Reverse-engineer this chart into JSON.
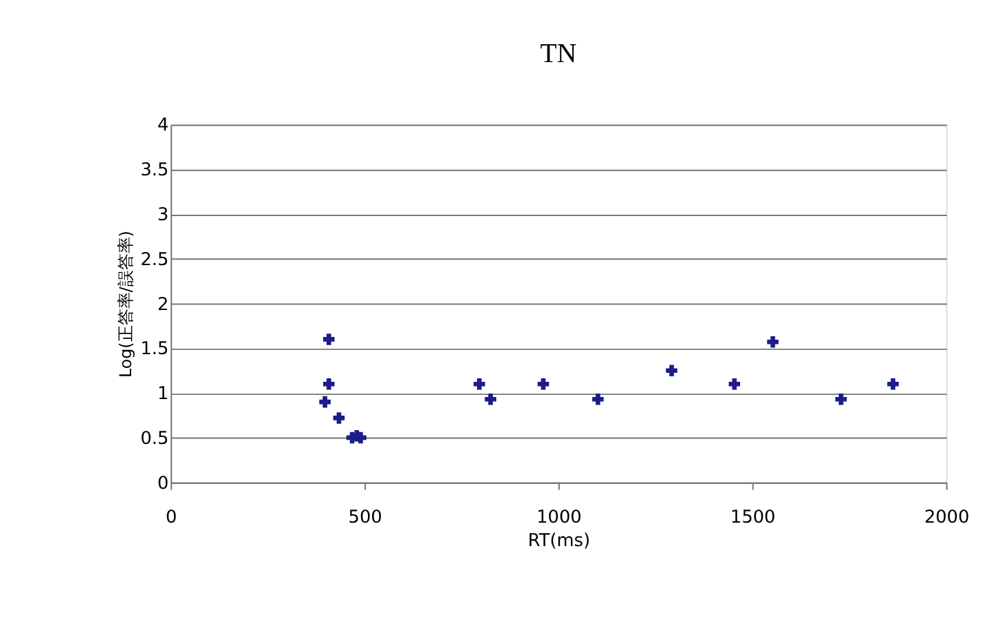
{
  "chart_data": {
    "type": "scatter",
    "title": "TN",
    "xlabel": "RT(ms)",
    "ylabel": "Log(正答率/誤答率)",
    "series": [
      {
        "color": "#1c1c8a",
        "marker": "cross",
        "x": [
          408,
          408,
          398,
          434,
          468,
          490,
          480
        ],
        "values": [
          1.6,
          1.1,
          0.9,
          0.72,
          0.5,
          0.5,
          0.52
        ]
      },
      {
        "color": "#1c1c8a",
        "marker": "cross",
        "x": [
          796,
          825,
          961,
          1102,
          1292,
          1454,
          1553,
          1729,
          1863
        ],
        "values": [
          1.1,
          0.93,
          1.1,
          0.93,
          1.25,
          1.1,
          1.57,
          0.93,
          1.1
        ]
      }
    ],
    "xlim": [
      0,
      2000
    ],
    "xticks": [
      0,
      500,
      1000,
      1500,
      2000
    ],
    "ylim": [
      0,
      4
    ],
    "yticks": [
      0,
      0.5,
      1,
      1.5,
      2,
      2.5,
      3,
      3.5,
      4
    ],
    "grid": "y",
    "legend": false
  }
}
